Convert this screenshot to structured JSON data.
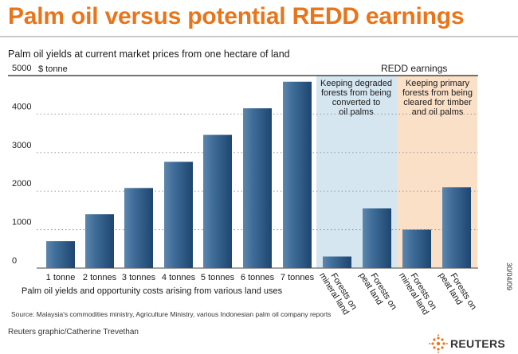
{
  "header": {
    "title": "Palm oil versus potential REDD earnings"
  },
  "footer": {
    "credit": "Reuters graphic/Catherine Trevethan",
    "logo": "REUTERS",
    "date_stamp": "30/04/09"
  },
  "colors": {
    "title": "#e8751a",
    "bar": "#2c5a86",
    "redd_degraded_bg": "#d6e6f0",
    "redd_primary_bg": "#fbe0c8"
  },
  "chart_data": {
    "type": "bar",
    "title": "Palm oil yields at current market prices from one hectare of land",
    "ylabel": "$ tonne",
    "ylim": [
      0,
      5000
    ],
    "yticks": [
      0,
      1000,
      2000,
      3000,
      4000,
      5000
    ],
    "grid": true,
    "categories": [
      "1 tonne",
      "2 tonnes",
      "3 tonnes",
      "4 tonnes",
      "5 tonnes",
      "6 tonnes",
      "7 tonnes",
      "Forests on mineral land",
      "Forests on peat land",
      "Forests on mineral land",
      "Forests on peat land"
    ],
    "values": [
      700,
      1400,
      2080,
      2760,
      3460,
      4150,
      4840,
      300,
      1550,
      1000,
      2100
    ],
    "redd_label": "REDD earnings",
    "redd_groups": [
      {
        "label": "Keeping degraded forests from being converted to oil palms",
        "lines": [
          "Keeping degraded",
          "forests from being",
          "converted to",
          "oil palms"
        ]
      },
      {
        "label": "Keeping primary forests from being cleared for timber and oil palms",
        "lines": [
          "Keeping primary",
          "forests from being",
          "cleared for timber",
          "and oil palms"
        ]
      }
    ],
    "x_caption": "Palm oil yields and opportunity costs arising from various land uses",
    "source": "Source: Malaysia's commodities ministry, Agriculture Ministry, various Indonesian palm oil company reports"
  }
}
